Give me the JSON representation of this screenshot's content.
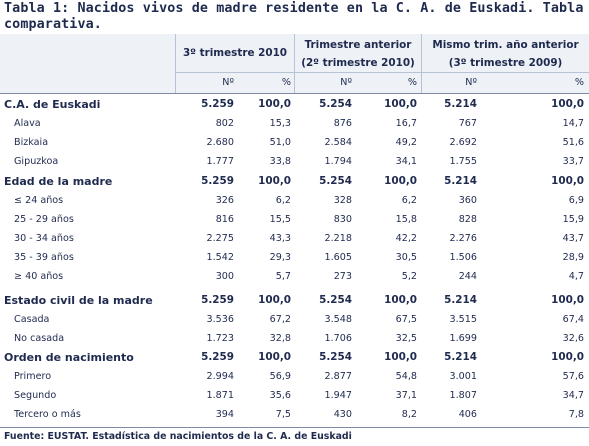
{
  "title": "Tabla 1: Nacidos vivos de madre residente en la C. A. de Euskadi. Tabla comparativa.",
  "header": {
    "groups": [
      {
        "line1": "3º trimestre 2010",
        "line2": ""
      },
      {
        "line1": "Trimestre anterior",
        "line2": "(2º trimestre 2010)"
      },
      {
        "line1": "Mismo trim. año anterior",
        "line2": "(3º trimestre 2009)"
      }
    ],
    "sub_n": "Nº",
    "sub_pct": "%"
  },
  "rows": [
    {
      "type": "section",
      "label": "C.A. de Euskadi",
      "values": [
        "5.259",
        "100,0",
        "5.254",
        "100,0",
        "5.214",
        "100,0"
      ]
    },
    {
      "type": "item",
      "label": "Alava",
      "values": [
        "802",
        "15,3",
        "876",
        "16,7",
        "767",
        "14,7"
      ]
    },
    {
      "type": "item",
      "label": "Bizkaia",
      "values": [
        "2.680",
        "51,0",
        "2.584",
        "49,2",
        "2.692",
        "51,6"
      ]
    },
    {
      "type": "item",
      "label": "Gipuzkoa",
      "values": [
        "1.777",
        "33,8",
        "1.794",
        "34,1",
        "1.755",
        "33,7"
      ]
    },
    {
      "type": "section",
      "label": "Edad de la madre",
      "values": [
        "5.259",
        "100,0",
        "5.254",
        "100,0",
        "5.214",
        "100,0"
      ]
    },
    {
      "type": "item",
      "label": "≤ 24 años",
      "values": [
        "326",
        "6,2",
        "328",
        "6,2",
        "360",
        "6,9"
      ]
    },
    {
      "type": "item",
      "label": "25 - 29 años",
      "values": [
        "816",
        "15,5",
        "830",
        "15,8",
        "828",
        "15,9"
      ]
    },
    {
      "type": "item",
      "label": "30 - 34 años",
      "values": [
        "2.275",
        "43,3",
        "2.218",
        "42,2",
        "2.276",
        "43,7"
      ]
    },
    {
      "type": "item",
      "label": "35 - 39 años",
      "values": [
        "1.542",
        "29,3",
        "1.605",
        "30,5",
        "1.506",
        "28,9"
      ]
    },
    {
      "type": "item",
      "label": "≥ 40 años",
      "values": [
        "300",
        "5,7",
        "273",
        "5,2",
        "244",
        "4,7"
      ]
    },
    {
      "type": "section",
      "label": "Estado civil de la madre",
      "values": [
        "5.259",
        "100,0",
        "5.254",
        "100,0",
        "5.214",
        "100,0"
      ]
    },
    {
      "type": "item",
      "label": "Casada",
      "values": [
        "3.536",
        "67,2",
        "3.548",
        "67,5",
        "3.515",
        "67,4"
      ]
    },
    {
      "type": "item",
      "label": "No casada",
      "values": [
        "1.723",
        "32,8",
        "1.706",
        "32,5",
        "1.699",
        "32,6"
      ]
    },
    {
      "type": "section",
      "label": "Orden de nacimiento",
      "values": [
        "5.259",
        "100,0",
        "5.254",
        "100,0",
        "5.214",
        "100,0"
      ]
    },
    {
      "type": "item",
      "label": "Primero",
      "values": [
        "2.994",
        "56,9",
        "2.877",
        "54,8",
        "3.001",
        "57,6"
      ]
    },
    {
      "type": "item",
      "label": "Segundo",
      "values": [
        "1.871",
        "35,6",
        "1.947",
        "37,1",
        "1.807",
        "34,7"
      ]
    },
    {
      "type": "item",
      "label": "Tercero o más",
      "values": [
        "394",
        "7,5",
        "430",
        "8,2",
        "406",
        "7,8"
      ]
    }
  ],
  "source": "Fuente: EUSTAT. Estadística de nacimientos de la C. A. de Euskadi"
}
